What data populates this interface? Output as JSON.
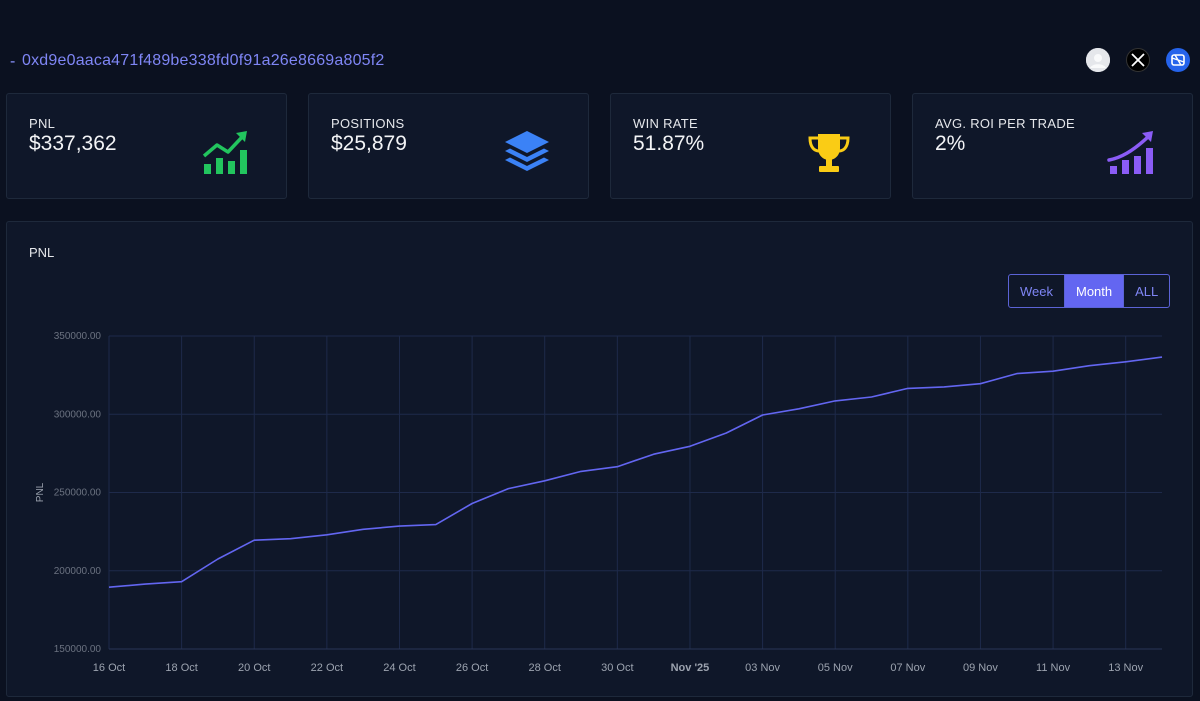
{
  "header": {
    "dash": "-",
    "address": "0xd9e0aaca471f489be338fd0f91a26e8669a805f2",
    "icons": [
      "avatar-icon",
      "x-icon",
      "app-icon"
    ]
  },
  "stats": [
    {
      "label": "PNL",
      "value": "$337,362",
      "icon": "chart-up-icon",
      "color": "#22c55e"
    },
    {
      "label": "POSITIONS",
      "value": "$25,879",
      "icon": "layers-icon",
      "color": "#3b82f6"
    },
    {
      "label": "WIN RATE",
      "value": "51.87%",
      "icon": "trophy-icon",
      "color": "#facc15"
    },
    {
      "label": "AVG. ROI PER TRADE",
      "value": "2%",
      "icon": "chart-up-icon",
      "color": "#8b5cf6"
    }
  ],
  "chart_panel": {
    "title": "PNL",
    "ranges": [
      "Week",
      "Month",
      "ALL"
    ],
    "active_range": "Month"
  },
  "chart_data": {
    "type": "line",
    "title": "PNL",
    "xlabel": "",
    "ylabel": "PNL",
    "ylim": [
      150000,
      350000
    ],
    "yticks": [
      "150000.00",
      "200000.00",
      "250000.00",
      "300000.00",
      "350000.00"
    ],
    "xticks": [
      "16 Oct",
      "18 Oct",
      "20 Oct",
      "22 Oct",
      "24 Oct",
      "26 Oct",
      "28 Oct",
      "30 Oct",
      "Nov '25",
      "03 Nov",
      "05 Nov",
      "07 Nov",
      "09 Nov",
      "11 Nov",
      "13 Nov"
    ],
    "grid": true,
    "color": "#6366f1",
    "x": [
      "16 Oct",
      "17 Oct",
      "18 Oct",
      "19 Oct",
      "20 Oct",
      "21 Oct",
      "22 Oct",
      "23 Oct",
      "24 Oct",
      "25 Oct",
      "26 Oct",
      "27 Oct",
      "28 Oct",
      "29 Oct",
      "30 Oct",
      "31 Oct",
      "01 Nov",
      "02 Nov",
      "03 Nov",
      "04 Nov",
      "05 Nov",
      "06 Nov",
      "07 Nov",
      "08 Nov",
      "09 Nov",
      "10 Nov",
      "11 Nov",
      "12 Nov",
      "13 Nov",
      "14 Nov"
    ],
    "values": [
      189500,
      191500,
      193000,
      207500,
      219500,
      220500,
      223000,
      226500,
      228500,
      229500,
      243000,
      252500,
      257500,
      263500,
      266500,
      274500,
      279500,
      288000,
      299500,
      303500,
      308500,
      311000,
      316500,
      317500,
      319500,
      326000,
      327500,
      331000,
      333500,
      336500
    ]
  }
}
